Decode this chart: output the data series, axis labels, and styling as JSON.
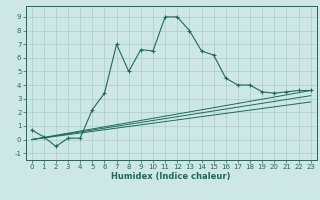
{
  "title": "",
  "xlabel": "Humidex (Indice chaleur)",
  "background_color": "#cde8e4",
  "grid_color": "#aaccc8",
  "line_color": "#1a6b5a",
  "xlim": [
    -0.5,
    23.5
  ],
  "ylim": [
    -1.5,
    9.8
  ],
  "x_ticks": [
    0,
    1,
    2,
    3,
    4,
    5,
    6,
    7,
    8,
    9,
    10,
    11,
    12,
    13,
    14,
    15,
    16,
    17,
    18,
    19,
    20,
    21,
    22,
    23
  ],
  "y_ticks": [
    -1,
    0,
    1,
    2,
    3,
    4,
    5,
    6,
    7,
    8,
    9
  ],
  "curve1_x": [
    0,
    1,
    2,
    3,
    4,
    5,
    6,
    7,
    8,
    9,
    10,
    11,
    12,
    13,
    14,
    15,
    16,
    17,
    18,
    19,
    20,
    21,
    22,
    23
  ],
  "curve1_y": [
    0.7,
    0.2,
    -0.5,
    0.1,
    0.1,
    2.2,
    3.4,
    7.0,
    5.0,
    6.6,
    6.5,
    9.0,
    9.0,
    8.0,
    6.5,
    6.2,
    4.5,
    4.0,
    4.0,
    3.5,
    3.4,
    3.5,
    3.6,
    3.6
  ],
  "line2_x": [
    0,
    5,
    10,
    15,
    20,
    23
  ],
  "line2_y": [
    0.0,
    0.78,
    1.56,
    2.34,
    3.12,
    3.6
  ],
  "line3_x": [
    0,
    5,
    10,
    15,
    20,
    23
  ],
  "line3_y": [
    0.0,
    0.7,
    1.4,
    2.1,
    2.8,
    3.22
  ],
  "line4_x": [
    0,
    5,
    10,
    15,
    20,
    23
  ],
  "line4_y": [
    0.0,
    0.6,
    1.2,
    1.8,
    2.4,
    2.76
  ],
  "tick_fontsize": 5.0,
  "xlabel_fontsize": 6.0
}
